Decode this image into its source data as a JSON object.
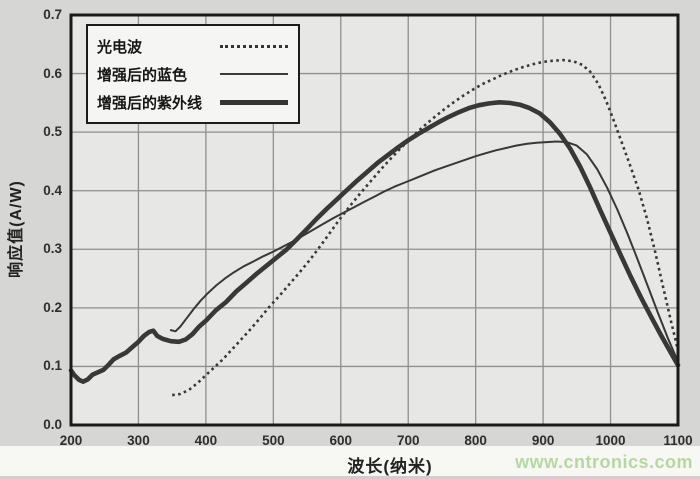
{
  "watermark": {
    "text": "www.cntronics.com",
    "color": "#b5d8a2"
  },
  "colors": {
    "page_bg": "#d6d6d4",
    "plot_bg": "#e7e7e5",
    "grid": "#8f8f8f",
    "border": "#1a1a1a",
    "curve": "#383838"
  },
  "chart_data": {
    "type": "line",
    "title": "",
    "xlabel": "波长(纳米)",
    "ylabel": "响应值(A/W)",
    "xlim": [
      200,
      1100
    ],
    "ylim": [
      0,
      0.7
    ],
    "x_ticks": [
      200,
      300,
      400,
      500,
      600,
      700,
      800,
      900,
      1000,
      1100
    ],
    "y_ticks": [
      "0.7",
      "0.6",
      "0.5",
      "0.4",
      "0.3",
      "0.2",
      "0.1",
      "0.0"
    ],
    "grid": true,
    "legend_position": "top-left",
    "series": [
      {
        "name": "光电波",
        "style": "dotted",
        "points": [
          [
            350,
            0.051
          ],
          [
            362,
            0.053
          ],
          [
            375,
            0.06
          ],
          [
            388,
            0.072
          ],
          [
            400,
            0.085
          ],
          [
            412,
            0.098
          ],
          [
            425,
            0.112
          ],
          [
            438,
            0.128
          ],
          [
            450,
            0.143
          ],
          [
            465,
            0.162
          ],
          [
            480,
            0.182
          ],
          [
            495,
            0.203
          ],
          [
            510,
            0.222
          ],
          [
            525,
            0.242
          ],
          [
            540,
            0.262
          ],
          [
            555,
            0.283
          ],
          [
            570,
            0.306
          ],
          [
            585,
            0.33
          ],
          [
            600,
            0.354
          ],
          [
            615,
            0.376
          ],
          [
            630,
            0.397
          ],
          [
            645,
            0.417
          ],
          [
            660,
            0.437
          ],
          [
            675,
            0.456
          ],
          [
            690,
            0.474
          ],
          [
            705,
            0.491
          ],
          [
            720,
            0.507
          ],
          [
            735,
            0.522
          ],
          [
            750,
            0.536
          ],
          [
            765,
            0.549
          ],
          [
            780,
            0.561
          ],
          [
            795,
            0.572
          ],
          [
            810,
            0.582
          ],
          [
            825,
            0.59
          ],
          [
            840,
            0.598
          ],
          [
            855,
            0.605
          ],
          [
            870,
            0.611
          ],
          [
            885,
            0.616
          ],
          [
            900,
            0.62
          ],
          [
            915,
            0.622
          ],
          [
            930,
            0.623
          ],
          [
            945,
            0.621
          ],
          [
            958,
            0.615
          ],
          [
            970,
            0.603
          ],
          [
            982,
            0.582
          ],
          [
            994,
            0.552
          ],
          [
            1006,
            0.516
          ],
          [
            1018,
            0.478
          ],
          [
            1030,
            0.44
          ],
          [
            1042,
            0.4
          ],
          [
            1054,
            0.352
          ],
          [
            1066,
            0.296
          ],
          [
            1078,
            0.235
          ],
          [
            1090,
            0.175
          ],
          [
            1100,
            0.128
          ]
        ]
      },
      {
        "name": "增强后的蓝色",
        "style": "thin",
        "points": [
          [
            348,
            0.162
          ],
          [
            355,
            0.16
          ],
          [
            362,
            0.168
          ],
          [
            372,
            0.183
          ],
          [
            382,
            0.198
          ],
          [
            392,
            0.212
          ],
          [
            402,
            0.224
          ],
          [
            415,
            0.238
          ],
          [
            428,
            0.25
          ],
          [
            442,
            0.261
          ],
          [
            456,
            0.271
          ],
          [
            470,
            0.279
          ],
          [
            485,
            0.288
          ],
          [
            500,
            0.296
          ],
          [
            515,
            0.305
          ],
          [
            530,
            0.314
          ],
          [
            545,
            0.324
          ],
          [
            560,
            0.334
          ],
          [
            575,
            0.344
          ],
          [
            590,
            0.354
          ],
          [
            605,
            0.363
          ],
          [
            620,
            0.372
          ],
          [
            635,
            0.381
          ],
          [
            650,
            0.39
          ],
          [
            665,
            0.399
          ],
          [
            680,
            0.407
          ],
          [
            695,
            0.414
          ],
          [
            710,
            0.421
          ],
          [
            725,
            0.428
          ],
          [
            740,
            0.435
          ],
          [
            755,
            0.441
          ],
          [
            770,
            0.447
          ],
          [
            785,
            0.453
          ],
          [
            800,
            0.459
          ],
          [
            815,
            0.464
          ],
          [
            830,
            0.469
          ],
          [
            845,
            0.473
          ],
          [
            860,
            0.477
          ],
          [
            875,
            0.48
          ],
          [
            890,
            0.482
          ],
          [
            905,
            0.483
          ],
          [
            920,
            0.484
          ],
          [
            935,
            0.483
          ],
          [
            950,
            0.477
          ],
          [
            965,
            0.462
          ],
          [
            980,
            0.437
          ],
          [
            995,
            0.405
          ],
          [
            1010,
            0.368
          ],
          [
            1025,
            0.327
          ],
          [
            1040,
            0.283
          ],
          [
            1055,
            0.238
          ],
          [
            1070,
            0.192
          ],
          [
            1085,
            0.148
          ],
          [
            1100,
            0.108
          ]
        ]
      },
      {
        "name": "增强后的紫外线",
        "style": "thick",
        "points": [
          [
            200,
            0.093
          ],
          [
            205,
            0.085
          ],
          [
            212,
            0.077
          ],
          [
            218,
            0.074
          ],
          [
            225,
            0.078
          ],
          [
            232,
            0.086
          ],
          [
            240,
            0.09
          ],
          [
            248,
            0.094
          ],
          [
            255,
            0.102
          ],
          [
            263,
            0.112
          ],
          [
            272,
            0.118
          ],
          [
            282,
            0.124
          ],
          [
            292,
            0.134
          ],
          [
            300,
            0.142
          ],
          [
            308,
            0.152
          ],
          [
            316,
            0.159
          ],
          [
            322,
            0.161
          ],
          [
            328,
            0.152
          ],
          [
            336,
            0.147
          ],
          [
            348,
            0.143
          ],
          [
            360,
            0.142
          ],
          [
            370,
            0.146
          ],
          [
            380,
            0.155
          ],
          [
            390,
            0.168
          ],
          [
            400,
            0.178
          ],
          [
            415,
            0.196
          ],
          [
            430,
            0.21
          ],
          [
            445,
            0.228
          ],
          [
            460,
            0.243
          ],
          [
            475,
            0.258
          ],
          [
            490,
            0.272
          ],
          [
            505,
            0.286
          ],
          [
            520,
            0.3
          ],
          [
            535,
            0.317
          ],
          [
            550,
            0.335
          ],
          [
            565,
            0.353
          ],
          [
            580,
            0.37
          ],
          [
            595,
            0.386
          ],
          [
            610,
            0.402
          ],
          [
            625,
            0.418
          ],
          [
            640,
            0.433
          ],
          [
            655,
            0.448
          ],
          [
            670,
            0.461
          ],
          [
            685,
            0.474
          ],
          [
            700,
            0.486
          ],
          [
            715,
            0.497
          ],
          [
            730,
            0.507
          ],
          [
            745,
            0.517
          ],
          [
            760,
            0.526
          ],
          [
            775,
            0.534
          ],
          [
            790,
            0.541
          ],
          [
            805,
            0.546
          ],
          [
            820,
            0.549
          ],
          [
            835,
            0.551
          ],
          [
            850,
            0.55
          ],
          [
            865,
            0.547
          ],
          [
            880,
            0.541
          ],
          [
            895,
            0.532
          ],
          [
            910,
            0.517
          ],
          [
            925,
            0.497
          ],
          [
            940,
            0.472
          ],
          [
            955,
            0.441
          ],
          [
            970,
            0.405
          ],
          [
            985,
            0.366
          ],
          [
            1000,
            0.328
          ],
          [
            1015,
            0.29
          ],
          [
            1030,
            0.253
          ],
          [
            1045,
            0.218
          ],
          [
            1060,
            0.185
          ],
          [
            1075,
            0.153
          ],
          [
            1090,
            0.122
          ],
          [
            1100,
            0.102
          ]
        ]
      }
    ]
  }
}
